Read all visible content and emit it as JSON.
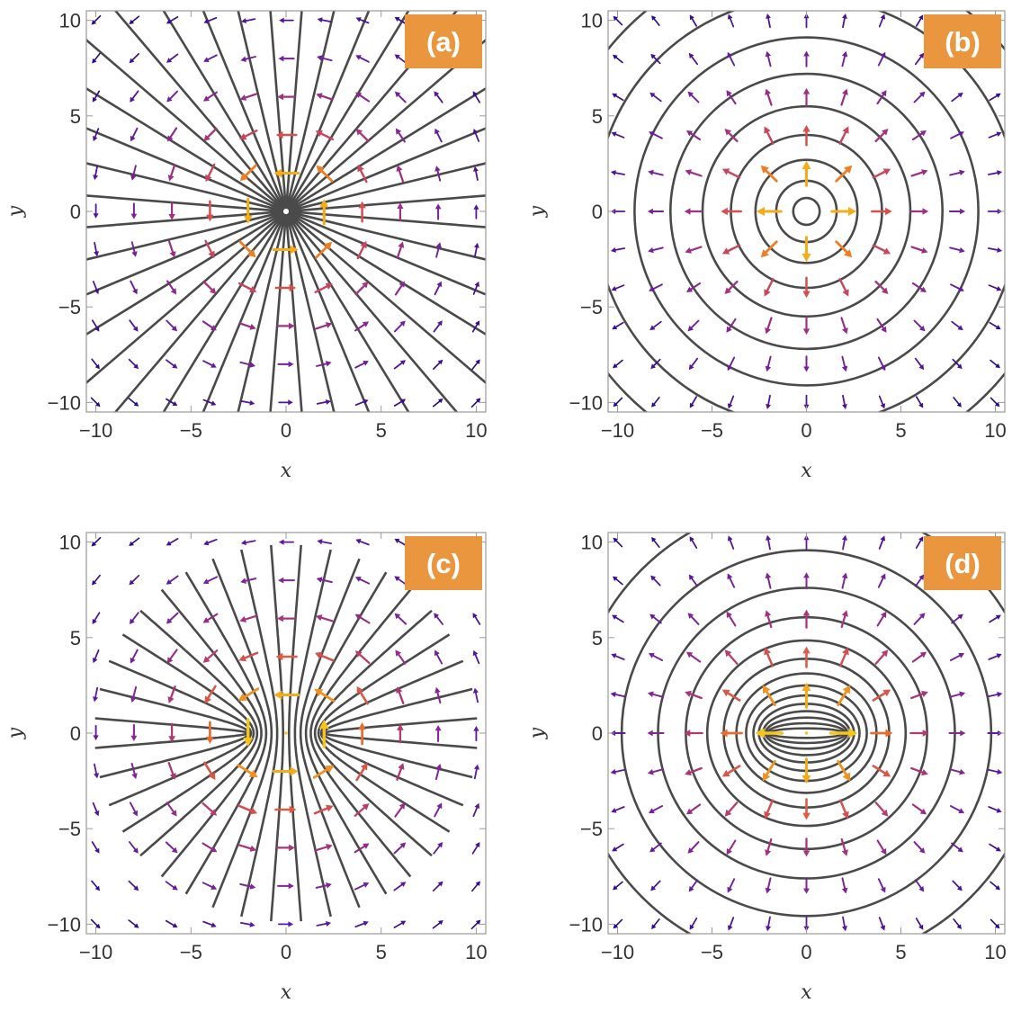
{
  "figure": {
    "panel_labels": [
      "(a)",
      "(b)",
      "(c)",
      "(d)"
    ],
    "badge_color": "#E9963F",
    "stream_color": "#4a4a4a",
    "frame_color": "#9a9a9a",
    "arrow_colormap": [
      "#2a0a8c",
      "#6a1fa0",
      "#a03080",
      "#d04a55",
      "#ee7a25",
      "#f3ac1c",
      "#f7c41a"
    ]
  },
  "chart_data": [
    {
      "panel": "(a)",
      "type": "stream",
      "pattern": "radial-lines-from-point-source",
      "sources_x": [
        0
      ],
      "xlabel": "x",
      "ylabel": "y",
      "xlim": [
        -10,
        10
      ],
      "ylim": [
        -10,
        10
      ],
      "xticks": [
        -10,
        -5,
        0,
        5,
        10
      ],
      "yticks": [
        -10,
        -5,
        0,
        5,
        10
      ],
      "x_tick_labels": [
        "−10",
        "−5",
        "0",
        "5",
        "10"
      ],
      "y_tick_labels": [
        "−10",
        "−5",
        "0",
        "5",
        "10"
      ],
      "arrow_field": "circulation-around-origin"
    },
    {
      "panel": "(b)",
      "type": "stream",
      "pattern": "concentric-circles-around-point",
      "sources_x": [
        0
      ],
      "xlabel": "x",
      "ylabel": "y",
      "xlim": [
        -10,
        10
      ],
      "ylim": [
        -10,
        10
      ],
      "xticks": [
        -10,
        -5,
        0,
        5,
        10
      ],
      "yticks": [
        -10,
        -5,
        0,
        5,
        10
      ],
      "x_tick_labels": [
        "−10",
        "−5",
        "0",
        "5",
        "10"
      ],
      "y_tick_labels": [
        "−10",
        "−5",
        "0",
        "5",
        "10"
      ],
      "arrow_field": "radial-outward-from-origin"
    },
    {
      "panel": "(c)",
      "type": "stream",
      "pattern": "hyperbolic-lines-from-segment",
      "sources_x": [
        -2,
        2
      ],
      "xlabel": "x",
      "ylabel": "y",
      "xlim": [
        -10,
        10
      ],
      "ylim": [
        -10,
        10
      ],
      "xticks": [
        -10,
        -5,
        0,
        5,
        10
      ],
      "yticks": [
        -10,
        -5,
        0,
        5,
        10
      ],
      "x_tick_labels": [
        "−10",
        "−5",
        "0",
        "5",
        "10"
      ],
      "y_tick_labels": [
        "−10",
        "−5",
        "0",
        "5",
        "10"
      ],
      "arrow_field": "circulation-around-segment"
    },
    {
      "panel": "(d)",
      "type": "stream",
      "pattern": "confocal-ellipses-around-segment",
      "sources_x": [
        -2,
        2
      ],
      "xlabel": "x",
      "ylabel": "y",
      "xlim": [
        -10,
        10
      ],
      "ylim": [
        -10,
        10
      ],
      "xticks": [
        -10,
        -5,
        0,
        5,
        10
      ],
      "yticks": [
        -10,
        -5,
        0,
        5,
        10
      ],
      "x_tick_labels": [
        "−10",
        "−5",
        "0",
        "5",
        "10"
      ],
      "y_tick_labels": [
        "−10",
        "−5",
        "0",
        "5",
        "10"
      ],
      "arrow_field": "outward-from-segment"
    }
  ]
}
